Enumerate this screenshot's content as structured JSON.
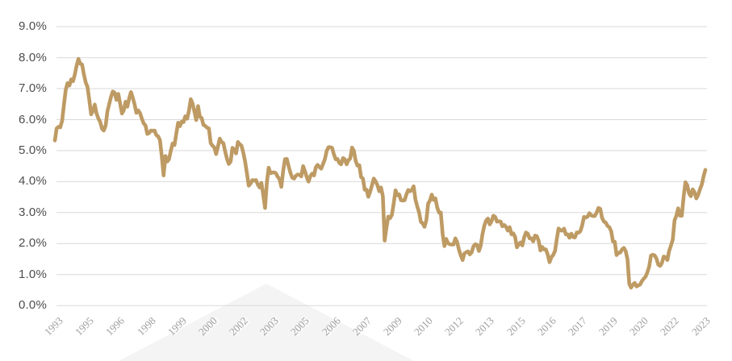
{
  "chart_data": {
    "type": "line",
    "title": "",
    "legend": "none",
    "grid": "horizontal",
    "ylim": [
      0,
      9
    ],
    "y_step": 1.0,
    "y_tick_labels": [
      "9.0%",
      "8.0%",
      "7.0%",
      "6.0%",
      "5.0%",
      "4.0%",
      "3.0%",
      "2.0%",
      "1.0%",
      "0.0%"
    ],
    "x_tick_labels": [
      "1993",
      "1995",
      "1996",
      "1998",
      "1999",
      "2000",
      "2002",
      "2003",
      "2005",
      "2006",
      "2007",
      "2009",
      "2010",
      "2012",
      "2013",
      "2015",
      "2016",
      "2017",
      "2019",
      "2020",
      "2022",
      "2023"
    ],
    "tick_point_indices": [
      0,
      17,
      34,
      51,
      68,
      85,
      102,
      119,
      136,
      153,
      170,
      187,
      204,
      221,
      238,
      255,
      272,
      289,
      306,
      323,
      340,
      357
    ],
    "frequency": "monthly",
    "series": [
      {
        "name": "yield-series",
        "color": "#BE9B64",
        "values": [
          5.33,
          5.72,
          5.77,
          5.75,
          5.97,
          6.48,
          6.97,
          7.18,
          7.1,
          7.3,
          7.24,
          7.46,
          7.74,
          7.96,
          7.81,
          7.78,
          7.47,
          7.2,
          7.06,
          6.63,
          6.17,
          6.28,
          6.49,
          6.2,
          6.04,
          5.93,
          5.71,
          5.65,
          5.81,
          6.27,
          6.51,
          6.74,
          6.91,
          6.87,
          6.64,
          6.83,
          6.53,
          6.2,
          6.3,
          6.58,
          6.42,
          6.69,
          6.89,
          6.71,
          6.49,
          6.22,
          6.3,
          6.21,
          6.03,
          5.88,
          5.81,
          5.54,
          5.57,
          5.65,
          5.64,
          5.65,
          5.5,
          5.46,
          5.34,
          4.81,
          4.2,
          4.83,
          4.65,
          4.72,
          5.0,
          5.23,
          5.18,
          5.54,
          5.9,
          5.79,
          5.94,
          5.92,
          6.11,
          6.03,
          6.28,
          6.66,
          6.52,
          6.26,
          5.99,
          6.44,
          6.1,
          6.05,
          5.83,
          5.8,
          5.74,
          5.72,
          5.24,
          5.16,
          5.1,
          4.89,
          5.14,
          5.39,
          5.28,
          5.24,
          4.97,
          4.73,
          4.57,
          4.65,
          5.09,
          5.04,
          4.91,
          5.28,
          5.21,
          5.16,
          4.93,
          4.65,
          4.26,
          3.87,
          3.94,
          4.05,
          4.03,
          4.05,
          3.9,
          3.81,
          3.96,
          3.57,
          3.15,
          3.98,
          4.45,
          4.27,
          4.29,
          4.3,
          4.27,
          4.15,
          4.08,
          3.83,
          4.35,
          4.72,
          4.73,
          4.5,
          4.28,
          4.13,
          4.1,
          4.19,
          4.23,
          4.22,
          4.17,
          4.5,
          4.34,
          4.14,
          4.0,
          4.18,
          4.26,
          4.2,
          4.46,
          4.54,
          4.47,
          4.42,
          4.57,
          4.72,
          4.99,
          5.11,
          5.11,
          5.09,
          4.88,
          4.72,
          4.73,
          4.6,
          4.56,
          4.76,
          4.72,
          4.56,
          4.69,
          4.75,
          5.1,
          5.0,
          4.67,
          4.52,
          4.53,
          4.15,
          4.1,
          3.74,
          3.74,
          3.51,
          3.68,
          3.88,
          4.1,
          4.01,
          3.89,
          3.69,
          3.81,
          3.53,
          2.1,
          2.52,
          2.87,
          2.82,
          2.93,
          3.29,
          3.72,
          3.56,
          3.59,
          3.4,
          3.39,
          3.4,
          3.59,
          3.73,
          3.69,
          3.73,
          3.85,
          3.42,
          3.2,
          3.01,
          2.7,
          2.65,
          2.54,
          2.76,
          3.29,
          3.39,
          3.58,
          3.41,
          3.46,
          3.17,
          3.0,
          3.0,
          2.3,
          1.92,
          2.15,
          2.01,
          1.98,
          1.97,
          1.97,
          2.17,
          2.05,
          1.8,
          1.62,
          1.47,
          1.68,
          1.72,
          1.75,
          1.65,
          1.72,
          1.91,
          1.98,
          1.96,
          1.76,
          1.93,
          2.3,
          2.58,
          2.74,
          2.81,
          2.62,
          2.72,
          2.9,
          2.86,
          2.71,
          2.72,
          2.71,
          2.56,
          2.6,
          2.54,
          2.42,
          2.53,
          2.3,
          2.33,
          2.21,
          1.88,
          1.98,
          2.04,
          1.94,
          2.2,
          2.36,
          2.32,
          2.17,
          2.17,
          2.07,
          2.26,
          2.24,
          2.09,
          1.78,
          1.89,
          1.81,
          1.81,
          1.64,
          1.4,
          1.56,
          1.63,
          1.76,
          2.14,
          2.49,
          2.43,
          2.42,
          2.48,
          2.3,
          2.3,
          2.19,
          2.32,
          2.21,
          2.2,
          2.36,
          2.35,
          2.4,
          2.58,
          2.86,
          2.84,
          2.87,
          2.98,
          2.91,
          2.89,
          2.89,
          3.0,
          3.15,
          3.12,
          2.83,
          2.71,
          2.68,
          2.57,
          2.53,
          2.4,
          2.07,
          2.06,
          1.63,
          1.7,
          1.71,
          1.81,
          1.86,
          1.76,
          1.5,
          0.7,
          0.58,
          0.67,
          0.73,
          0.62,
          0.65,
          0.68,
          0.79,
          0.87,
          0.93,
          1.08,
          1.26,
          1.61,
          1.64,
          1.62,
          1.52,
          1.32,
          1.28,
          1.37,
          1.58,
          1.56,
          1.47,
          1.76,
          1.93,
          2.13,
          2.75,
          2.9,
          3.14,
          2.9,
          2.9,
          3.52,
          3.98,
          3.89,
          3.62,
          3.53,
          3.75,
          3.66,
          3.46,
          3.57,
          3.75,
          3.9,
          4.17,
          4.38
        ]
      }
    ]
  },
  "colors": {
    "line": "#BE9B64",
    "gridline": "#D9D9D9",
    "y_label": "#4D4D4D",
    "x_label": "#9F9F9F",
    "watermark": "#F4F4F5",
    "background": "#FFFFFF"
  }
}
